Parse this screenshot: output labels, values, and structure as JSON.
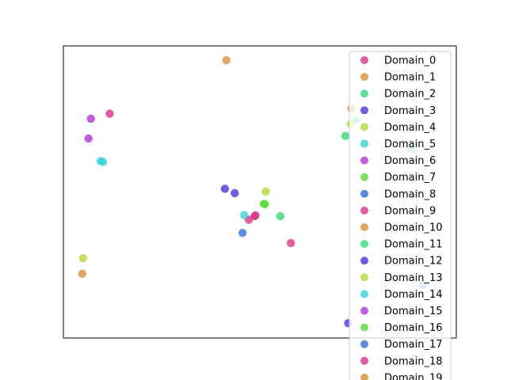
{
  "chart_data": {
    "type": "scatter",
    "title": "",
    "xlabel": "",
    "ylabel": "",
    "xlim": [
      0,
      100
    ],
    "ylim": [
      0,
      100
    ],
    "grid": false,
    "axis_ticks": false,
    "legend_position": "top-right",
    "series": [
      {
        "name": "Domain_0",
        "color": "#d9348f",
        "points": [
          [
            11.8,
            76.8
          ]
        ]
      },
      {
        "name": "Domain_1",
        "color": "#d99034",
        "points": [
          [
            41.5,
            95.1
          ]
        ]
      },
      {
        "name": "Domain_2",
        "color": "#34d97b",
        "points": [
          [
            74.3,
            74.6
          ],
          [
            71.8,
            69.2
          ],
          [
            88.5,
            64.6
          ]
        ]
      },
      {
        "name": "Domain_3",
        "color": "#4c34d9",
        "points": [
          [
            41.1,
            51.1
          ],
          [
            72.5,
            5.1
          ]
        ]
      },
      {
        "name": "Domain_4",
        "color": "#b0d934",
        "points": [
          [
            5.0,
            27.3
          ],
          [
            73.1,
            73.3
          ]
        ]
      },
      {
        "name": "Domain_5",
        "color": "#34d0d9",
        "points": [
          [
            9.5,
            60.6
          ],
          [
            10.1,
            60.3
          ]
        ]
      },
      {
        "name": "Domain_6",
        "color": "#b234d9",
        "points": [
          [
            7.0,
            75.1
          ],
          [
            6.4,
            68.3
          ]
        ]
      },
      {
        "name": "Domain_7",
        "color": "#5ad934",
        "points": [
          [
            51.3,
            45.8
          ]
        ]
      },
      {
        "name": "Domain_8",
        "color": "#346fd9",
        "points": [
          [
            91.5,
            18.2
          ]
        ]
      },
      {
        "name": "Domain_9",
        "color": "#d93484",
        "points": [
          [
            48.7,
            41.7
          ],
          [
            47.2,
            40.5
          ]
        ]
      },
      {
        "name": "Domain_10",
        "color": "#d99034",
        "points": [
          [
            4.8,
            22.0
          ],
          [
            73.3,
            78.5
          ]
        ]
      },
      {
        "name": "Domain_11",
        "color": "#34d97b",
        "points": [
          [
            55.2,
            41.7
          ]
        ]
      },
      {
        "name": "Domain_12",
        "color": "#4c34d9",
        "points": [
          [
            43.6,
            49.6
          ]
        ]
      },
      {
        "name": "Domain_13",
        "color": "#b0d934",
        "points": [
          [
            51.5,
            50.1
          ]
        ]
      },
      {
        "name": "Domain_14",
        "color": "#34d0d9",
        "points": [
          [
            46.0,
            42.1
          ]
        ]
      },
      {
        "name": "Domain_15",
        "color": "#b234d9",
        "points": []
      },
      {
        "name": "Domain_16",
        "color": "#5ad934",
        "points": [
          [
            51.0,
            46.0
          ]
        ]
      },
      {
        "name": "Domain_17",
        "color": "#346fd9",
        "points": [
          [
            45.6,
            36.0
          ]
        ]
      },
      {
        "name": "Domain_18",
        "color": "#d93484",
        "points": [
          [
            48.9,
            42.0
          ],
          [
            57.9,
            32.5
          ]
        ]
      },
      {
        "name": "Domain_19",
        "color": "#d99034",
        "points": []
      }
    ]
  }
}
